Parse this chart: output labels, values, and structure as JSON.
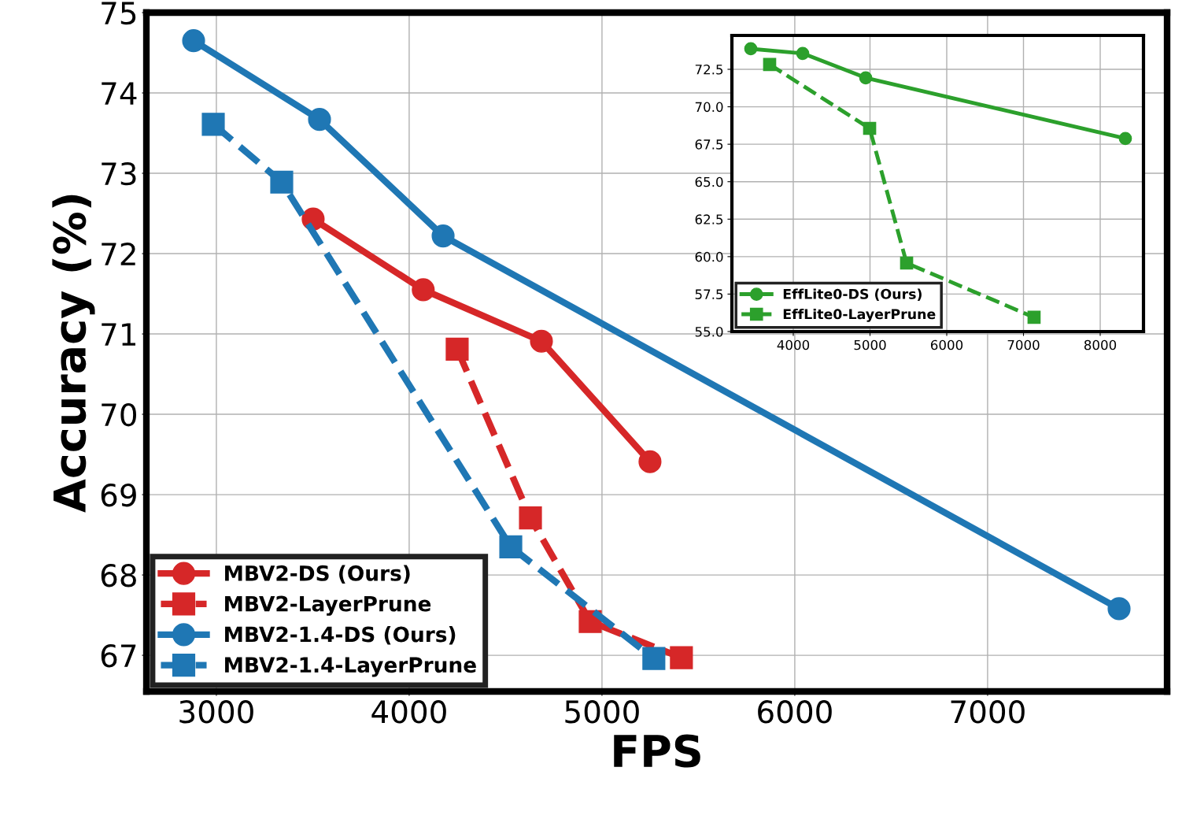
{
  "chart_data": [
    {
      "type": "line",
      "xlabel": "FPS",
      "ylabel": "Accuracy (%)",
      "xlim": [
        2637,
        7931
      ],
      "ylim": [
        66.55,
        75
      ],
      "xticks": [
        3000,
        4000,
        5000,
        6000,
        7000
      ],
      "yticks": [
        67,
        68,
        69,
        70,
        71,
        72,
        73,
        74,
        75
      ],
      "grid": true,
      "legend": "bottom left",
      "series": [
        {
          "name": "MBV2-DS (Ours)",
          "color": "#d62728",
          "marker": "circle",
          "line_style": "solid",
          "x": [
            3502,
            4073,
            4686,
            5249
          ],
          "values": [
            72.43,
            71.55,
            70.91,
            69.41
          ]
        },
        {
          "name": "MBV2-LayerPrune",
          "color": "#d62728",
          "marker": "square",
          "line_style": "dashed",
          "x": [
            4249,
            4629,
            4939,
            5412
          ],
          "values": [
            70.81,
            68.71,
            67.42,
            66.97
          ]
        },
        {
          "name": "MBV2-1.4-DS (Ours)",
          "color": "#1f77b4",
          "marker": "circle",
          "line_style": "solid",
          "x": [
            2882,
            3535,
            4176,
            7682
          ],
          "values": [
            74.65,
            73.67,
            72.22,
            67.58
          ]
        },
        {
          "name": "MBV2-1.4-LayerPrune",
          "color": "#1f77b4",
          "marker": "square",
          "line_style": "dashed",
          "x": [
            2984,
            3339,
            4527,
            5269
          ],
          "values": [
            73.61,
            72.89,
            68.35,
            66.96
          ]
        }
      ]
    },
    {
      "type": "line",
      "xlim": [
        3200,
        8564
      ],
      "ylim": [
        55,
        74.76
      ],
      "xticks": [
        4000,
        5000,
        6000,
        7000,
        8000
      ],
      "yticks": [
        {
          "value": 55,
          "label": "55.0"
        },
        {
          "value": 57.5,
          "label": "57.5"
        },
        {
          "value": 60,
          "label": "60.0"
        },
        {
          "value": 62.5,
          "label": "62.5"
        },
        {
          "value": 65,
          "label": "65.0"
        },
        {
          "value": 67.5,
          "label": "67.5"
        },
        {
          "value": 70,
          "label": "70.0"
        },
        {
          "value": 72.5,
          "label": "72.5"
        }
      ],
      "grid": true,
      "legend": "bottom left",
      "series": [
        {
          "name": "EffLite0-DS (Ours)",
          "color": "#2ca02c",
          "marker": "circle",
          "line_style": "solid",
          "x": [
            3446,
            4123,
            4944,
            8328
          ],
          "values": [
            73.87,
            73.56,
            71.93,
            67.88
          ]
        },
        {
          "name": "EffLite0-LayerPrune",
          "color": "#2ca02c",
          "marker": "square",
          "line_style": "dashed",
          "x": [
            3692,
            4995,
            5477,
            7138
          ],
          "values": [
            72.82,
            68.56,
            59.57,
            55.95
          ]
        }
      ]
    }
  ]
}
